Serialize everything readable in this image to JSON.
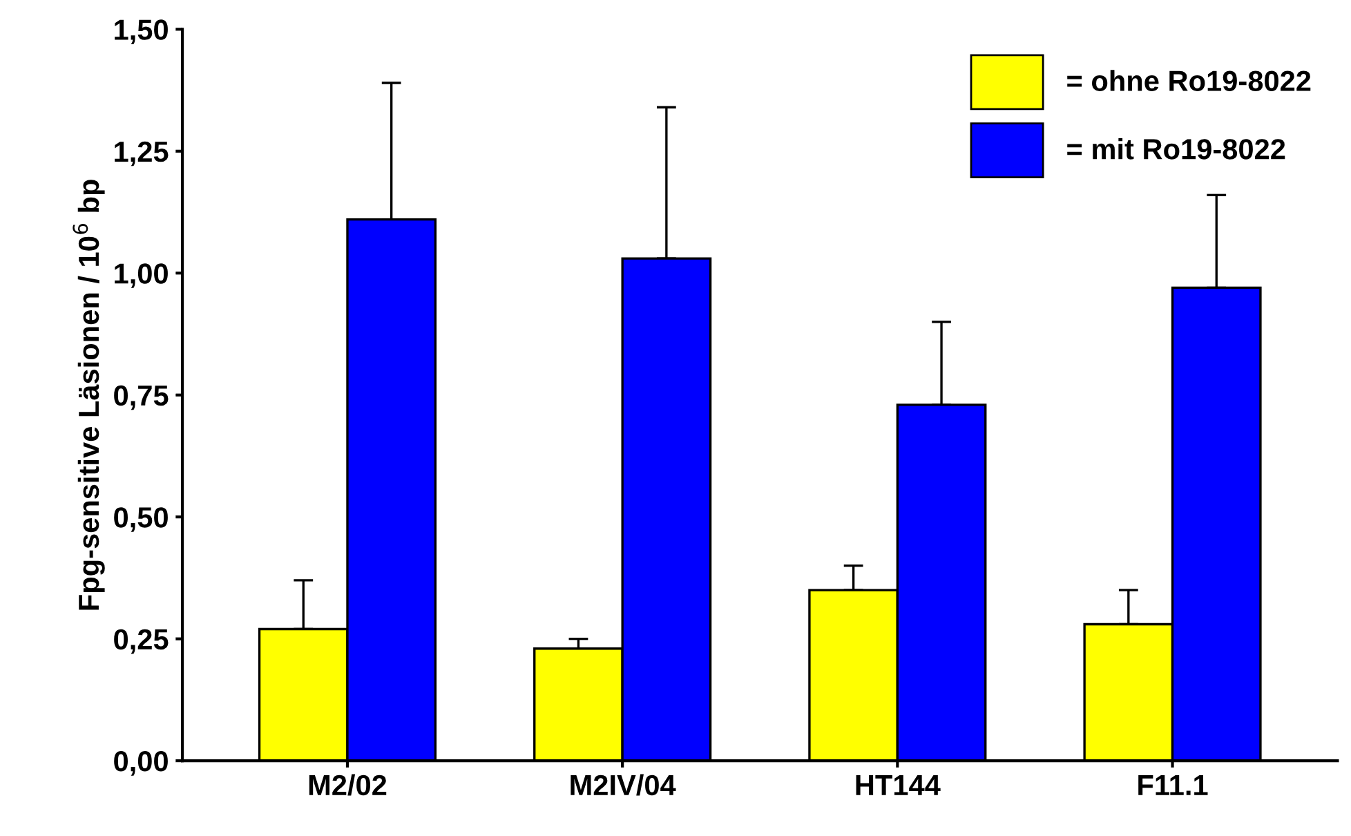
{
  "chart_data": {
    "type": "bar",
    "ylabel": "Fpg-sensitive Läsionen / 10$^{6}$ bp",
    "categories": [
      "M2/02",
      "M2IV/04",
      "HT144",
      "F11.1"
    ],
    "series": [
      {
        "name": "= ohne Ro19-8022",
        "color": "#ffff00",
        "values": [
          0.27,
          0.23,
          0.35,
          0.28
        ],
        "errors": [
          [
            0.27,
            0.37
          ],
          [
            0.23,
            0.25
          ],
          [
            0.35,
            0.4
          ],
          [
            0.28,
            0.35
          ]
        ]
      },
      {
        "name": "= mit Ro19-8022",
        "color": "#0000ff",
        "values": [
          1.11,
          1.03,
          0.73,
          0.97
        ],
        "errors": [
          [
            1.11,
            1.39
          ],
          [
            1.03,
            1.34
          ],
          [
            0.73,
            0.9
          ],
          [
            0.97,
            1.16
          ]
        ]
      }
    ],
    "ylim": [
      0,
      1.5
    ],
    "yticks": [
      {
        "value": 0,
        "label": "0,00"
      },
      {
        "value": 0.25,
        "label": "0,25"
      },
      {
        "value": 0.5,
        "label": "0,50"
      },
      {
        "value": 0.75,
        "label": "0,75"
      },
      {
        "value": 1.0,
        "label": "1,00"
      },
      {
        "value": 1.25,
        "label": "1,25"
      },
      {
        "value": 1.5,
        "label": "1,50"
      }
    ],
    "grid": false,
    "legend": "top right"
  }
}
